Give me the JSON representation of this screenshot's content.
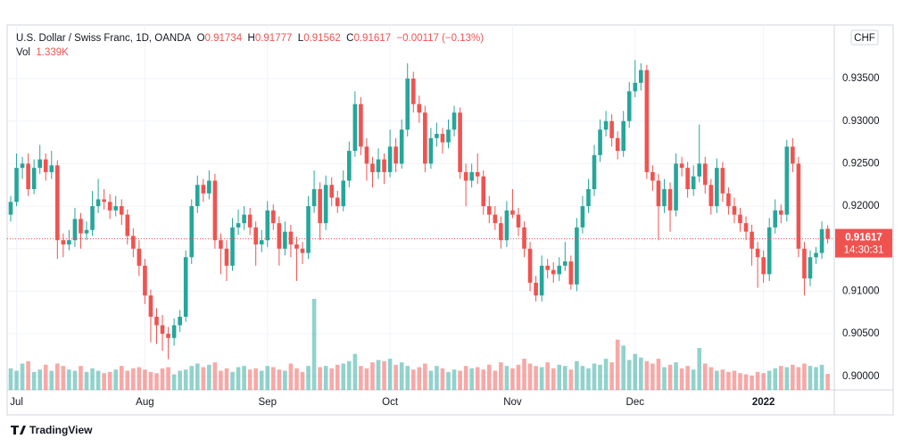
{
  "chart_data": {
    "type": "candlestick",
    "header": {
      "symbol": "U.S. Dollar / Swiss Franc, 1D, OANDA",
      "o_label": "O",
      "h_label": "H",
      "l_label": "L",
      "c_label": "C",
      "change": "−0.00117 (−0.13%)",
      "vol_label": "Vol",
      "vol_value": "1.339K",
      "currency": "CHF",
      "countdown": "14:30:31",
      "brand": "TradingView"
    },
    "up_color": "#26a69a",
    "down_color": "#ef5350",
    "ylim": [
      0.8984,
      0.9413
    ],
    "yticks": [
      {
        "value": 0.9,
        "label": "0.90000"
      },
      {
        "value": 0.905,
        "label": "0.90500"
      },
      {
        "value": 0.91,
        "label": "0.91000"
      },
      {
        "value": 0.915,
        "label": "0.91500"
      },
      {
        "value": 0.92,
        "label": "0.92000"
      },
      {
        "value": 0.925,
        "label": "0.92500"
      },
      {
        "value": 0.93,
        "label": "0.93000"
      },
      {
        "value": 0.935,
        "label": "0.93500"
      }
    ],
    "grid": true,
    "categories": [
      null,
      "Jul",
      null,
      null,
      null,
      null,
      null,
      null,
      null,
      null,
      null,
      null,
      null,
      null,
      null,
      null,
      null,
      null,
      null,
      null,
      null,
      null,
      null,
      "Aug",
      null,
      null,
      null,
      null,
      null,
      null,
      null,
      null,
      null,
      null,
      null,
      null,
      null,
      null,
      null,
      null,
      null,
      null,
      null,
      null,
      "Sep",
      null,
      null,
      null,
      null,
      null,
      null,
      null,
      null,
      null,
      null,
      null,
      null,
      null,
      null,
      null,
      null,
      null,
      null,
      null,
      null,
      "Oct",
      null,
      null,
      null,
      null,
      null,
      null,
      null,
      null,
      null,
      null,
      null,
      null,
      null,
      null,
      null,
      null,
      null,
      null,
      null,
      null,
      "Nov",
      null,
      null,
      null,
      null,
      null,
      null,
      null,
      null,
      null,
      null,
      null,
      null,
      null,
      null,
      null,
      null,
      null,
      null,
      null,
      null,
      "Dec",
      null,
      null,
      null,
      null,
      null,
      null,
      null,
      null,
      null,
      null,
      null,
      null,
      null,
      null,
      null,
      null,
      null,
      null,
      null,
      null,
      null,
      "2022",
      null,
      null,
      null,
      null,
      null,
      null,
      null,
      null,
      null,
      null,
      null
    ],
    "candles": [
      [
        0.919,
        0.9212,
        0.9182,
        0.9205
      ],
      [
        0.9205,
        0.9262,
        0.92,
        0.9245
      ],
      [
        0.9245,
        0.9258,
        0.9232,
        0.925
      ],
      [
        0.925,
        0.9262,
        0.9212,
        0.922
      ],
      [
        0.922,
        0.9255,
        0.9214,
        0.9245
      ],
      [
        0.9245,
        0.9272,
        0.9238,
        0.9255
      ],
      [
        0.9255,
        0.9262,
        0.923,
        0.924
      ],
      [
        0.924,
        0.9265,
        0.9232,
        0.9248
      ],
      [
        0.9248,
        0.9254,
        0.9138,
        0.916
      ],
      [
        0.916,
        0.9168,
        0.914,
        0.9155
      ],
      [
        0.9155,
        0.9172,
        0.9148,
        0.916
      ],
      [
        0.916,
        0.9198,
        0.9152,
        0.9185
      ],
      [
        0.9185,
        0.9192,
        0.915,
        0.9168
      ],
      [
        0.9168,
        0.9182,
        0.916,
        0.9172
      ],
      [
        0.9172,
        0.9218,
        0.9165,
        0.92
      ],
      [
        0.92,
        0.9232,
        0.9192,
        0.9208
      ],
      [
        0.9208,
        0.922,
        0.9196,
        0.9205
      ],
      [
        0.9205,
        0.9214,
        0.9185,
        0.9195
      ],
      [
        0.9195,
        0.9212,
        0.9188,
        0.92
      ],
      [
        0.92,
        0.9208,
        0.9178,
        0.919
      ],
      [
        0.919,
        0.9196,
        0.9155,
        0.9165
      ],
      [
        0.9165,
        0.9174,
        0.914,
        0.915
      ],
      [
        0.915,
        0.916,
        0.9118,
        0.913
      ],
      [
        0.913,
        0.9138,
        0.9085,
        0.9095
      ],
      [
        0.9095,
        0.9102,
        0.904,
        0.907
      ],
      [
        0.907,
        0.908,
        0.9038,
        0.906
      ],
      [
        0.906,
        0.9072,
        0.903,
        0.905
      ],
      [
        0.905,
        0.9058,
        0.902,
        0.9045
      ],
      [
        0.9045,
        0.9068,
        0.9036,
        0.906
      ],
      [
        0.906,
        0.9078,
        0.9052,
        0.907
      ],
      [
        0.907,
        0.9148,
        0.9064,
        0.914
      ],
      [
        0.914,
        0.9208,
        0.9132,
        0.92
      ],
      [
        0.92,
        0.9236,
        0.9192,
        0.9225
      ],
      [
        0.9225,
        0.9232,
        0.9205,
        0.9215
      ],
      [
        0.9215,
        0.9242,
        0.9208,
        0.923
      ],
      [
        0.923,
        0.9238,
        0.915,
        0.916
      ],
      [
        0.916,
        0.9168,
        0.912,
        0.915
      ],
      [
        0.915,
        0.916,
        0.9112,
        0.913
      ],
      [
        0.913,
        0.9186,
        0.9124,
        0.9175
      ],
      [
        0.9175,
        0.9196,
        0.9166,
        0.918
      ],
      [
        0.918,
        0.92,
        0.9172,
        0.919
      ],
      [
        0.919,
        0.9198,
        0.9166,
        0.9175
      ],
      [
        0.9175,
        0.9182,
        0.913,
        0.9155
      ],
      [
        0.9155,
        0.9172,
        0.9146,
        0.916
      ],
      [
        0.916,
        0.9206,
        0.9152,
        0.9195
      ],
      [
        0.9195,
        0.9202,
        0.9172,
        0.918
      ],
      [
        0.918,
        0.9188,
        0.913,
        0.915
      ],
      [
        0.915,
        0.9182,
        0.9142,
        0.917
      ],
      [
        0.917,
        0.9178,
        0.914,
        0.9155
      ],
      [
        0.9155,
        0.9164,
        0.9112,
        0.915
      ],
      [
        0.915,
        0.9158,
        0.9132,
        0.9145
      ],
      [
        0.9145,
        0.9212,
        0.9138,
        0.92
      ],
      [
        0.92,
        0.9242,
        0.9192,
        0.922
      ],
      [
        0.922,
        0.9228,
        0.916,
        0.918
      ],
      [
        0.918,
        0.9236,
        0.9172,
        0.9225
      ],
      [
        0.9225,
        0.9234,
        0.92,
        0.921
      ],
      [
        0.921,
        0.9218,
        0.9192,
        0.92
      ],
      [
        0.92,
        0.9242,
        0.9194,
        0.923
      ],
      [
        0.923,
        0.9276,
        0.9222,
        0.9265
      ],
      [
        0.9265,
        0.9335,
        0.9258,
        0.932
      ],
      [
        0.932,
        0.9328,
        0.926,
        0.927
      ],
      [
        0.927,
        0.928,
        0.923,
        0.925
      ],
      [
        0.925,
        0.9258,
        0.9222,
        0.924
      ],
      [
        0.924,
        0.9268,
        0.9232,
        0.9255
      ],
      [
        0.9255,
        0.9262,
        0.9226,
        0.924
      ],
      [
        0.924,
        0.929,
        0.9234,
        0.927
      ],
      [
        0.927,
        0.928,
        0.924,
        0.925
      ],
      [
        0.925,
        0.9302,
        0.9244,
        0.929
      ],
      [
        0.929,
        0.9368,
        0.9282,
        0.935
      ],
      [
        0.935,
        0.9358,
        0.931,
        0.932
      ],
      [
        0.932,
        0.933,
        0.9298,
        0.931
      ],
      [
        0.931,
        0.9318,
        0.924,
        0.925
      ],
      [
        0.925,
        0.9292,
        0.9244,
        0.928
      ],
      [
        0.928,
        0.9298,
        0.927,
        0.9285
      ],
      [
        0.9285,
        0.9292,
        0.9262,
        0.9275
      ],
      [
        0.9275,
        0.9302,
        0.9268,
        0.929
      ],
      [
        0.929,
        0.9318,
        0.9282,
        0.931
      ],
      [
        0.931,
        0.9316,
        0.9232,
        0.924
      ],
      [
        0.924,
        0.925,
        0.92,
        0.923
      ],
      [
        0.923,
        0.925,
        0.9222,
        0.924
      ],
      [
        0.924,
        0.9262,
        0.9226,
        0.9235
      ],
      [
        0.9235,
        0.9242,
        0.919,
        0.92
      ],
      [
        0.92,
        0.9212,
        0.918,
        0.919
      ],
      [
        0.919,
        0.92,
        0.9172,
        0.918
      ],
      [
        0.918,
        0.9188,
        0.915,
        0.916
      ],
      [
        0.916,
        0.9206,
        0.9152,
        0.9195
      ],
      [
        0.9195,
        0.922,
        0.9186,
        0.919
      ],
      [
        0.919,
        0.9198,
        0.9165,
        0.9175
      ],
      [
        0.9175,
        0.9182,
        0.914,
        0.915
      ],
      [
        0.915,
        0.9158,
        0.91,
        0.911
      ],
      [
        0.911,
        0.9118,
        0.9088,
        0.9095
      ],
      [
        0.9095,
        0.9142,
        0.9088,
        0.913
      ],
      [
        0.913,
        0.9138,
        0.9115,
        0.9125
      ],
      [
        0.9125,
        0.9134,
        0.911,
        0.912
      ],
      [
        0.912,
        0.914,
        0.9112,
        0.913
      ],
      [
        0.913,
        0.9158,
        0.9124,
        0.9135
      ],
      [
        0.9135,
        0.9142,
        0.9102,
        0.9108
      ],
      [
        0.9108,
        0.9186,
        0.91,
        0.9175
      ],
      [
        0.9175,
        0.9212,
        0.9168,
        0.92
      ],
      [
        0.92,
        0.9232,
        0.9192,
        0.922
      ],
      [
        0.922,
        0.9272,
        0.9212,
        0.926
      ],
      [
        0.926,
        0.9302,
        0.9252,
        0.929
      ],
      [
        0.929,
        0.9312,
        0.9282,
        0.93
      ],
      [
        0.93,
        0.9308,
        0.927,
        0.928
      ],
      [
        0.928,
        0.9288,
        0.9255,
        0.9265
      ],
      [
        0.9265,
        0.9312,
        0.9258,
        0.93
      ],
      [
        0.93,
        0.9346,
        0.9292,
        0.9335
      ],
      [
        0.9335,
        0.9372,
        0.9328,
        0.9345
      ],
      [
        0.9345,
        0.9368,
        0.9336,
        0.936
      ],
      [
        0.936,
        0.9366,
        0.9232,
        0.924
      ],
      [
        0.924,
        0.9248,
        0.9218,
        0.923
      ],
      [
        0.923,
        0.9238,
        0.916,
        0.92
      ],
      [
        0.92,
        0.9232,
        0.9192,
        0.922
      ],
      [
        0.922,
        0.9228,
        0.917,
        0.9195
      ],
      [
        0.9195,
        0.9262,
        0.9188,
        0.925
      ],
      [
        0.925,
        0.9258,
        0.9235,
        0.9245
      ],
      [
        0.9245,
        0.9252,
        0.921,
        0.922
      ],
      [
        0.922,
        0.9248,
        0.9212,
        0.9235
      ],
      [
        0.9235,
        0.9296,
        0.9228,
        0.925
      ],
      [
        0.925,
        0.9258,
        0.9215,
        0.9225
      ],
      [
        0.9225,
        0.9232,
        0.919,
        0.92
      ],
      [
        0.92,
        0.9256,
        0.9192,
        0.9245
      ],
      [
        0.9245,
        0.9252,
        0.9205,
        0.9215
      ],
      [
        0.9215,
        0.9222,
        0.919,
        0.92
      ],
      [
        0.92,
        0.921,
        0.918,
        0.919
      ],
      [
        0.919,
        0.9198,
        0.917,
        0.918
      ],
      [
        0.918,
        0.9188,
        0.916,
        0.917
      ],
      [
        0.917,
        0.9178,
        0.913,
        0.915
      ],
      [
        0.915,
        0.9158,
        0.9104,
        0.914
      ],
      [
        0.914,
        0.9148,
        0.911,
        0.912
      ],
      [
        0.912,
        0.9186,
        0.9112,
        0.9175
      ],
      [
        0.9175,
        0.9208,
        0.9168,
        0.9195
      ],
      [
        0.9195,
        0.9202,
        0.918,
        0.919
      ],
      [
        0.919,
        0.9278,
        0.9182,
        0.927
      ],
      [
        0.927,
        0.928,
        0.924,
        0.925
      ],
      [
        0.925,
        0.9258,
        0.914,
        0.915
      ],
      [
        0.915,
        0.9158,
        0.9095,
        0.9115
      ],
      [
        0.9115,
        0.9148,
        0.9106,
        0.914
      ],
      [
        0.914,
        0.9152,
        0.9132,
        0.9145
      ],
      [
        0.9145,
        0.9182,
        0.9138,
        0.9173
      ],
      [
        0.91734,
        0.91777,
        0.91562,
        0.91617
      ]
    ],
    "volume": [
      1.8,
      1.6,
      2.2,
      2.4,
      1.5,
      1.7,
      2.1,
      1.6,
      2.2,
      2.0,
      1.7,
      1.6,
      2.0,
      1.5,
      1.8,
      1.6,
      1.4,
      1.5,
      1.7,
      2.0,
      1.6,
      1.8,
      1.9,
      1.7,
      1.5,
      1.4,
      1.8,
      1.9,
      1.3,
      1.6,
      1.7,
      2.0,
      2.2,
      1.9,
      2.1,
      2.3,
      1.6,
      1.8,
      1.5,
      1.9,
      2.0,
      1.7,
      1.8,
      1.6,
      2.0,
      1.9,
      1.7,
      1.6,
      2.2,
      1.8,
      1.5,
      2.0,
      7.6,
      1.9,
      2.0,
      1.8,
      2.1,
      2.2,
      2.4,
      3.0,
      2.0,
      1.8,
      2.3,
      2.5,
      2.4,
      2.6,
      2.1,
      2.3,
      2.0,
      1.7,
      1.9,
      2.2,
      1.6,
      2.0,
      1.8,
      1.5,
      1.7,
      1.6,
      2.0,
      1.8,
      1.9,
      1.7,
      2.1,
      1.6,
      2.3,
      2.0,
      1.8,
      2.1,
      2.6,
      2.2,
      2.0,
      1.9,
      2.3,
      1.8,
      2.1,
      2.0,
      1.7,
      2.4,
      2.0,
      1.8,
      2.2,
      2.1,
      2.6,
      2.3,
      4.2,
      3.7,
      2.5,
      3.0,
      2.7,
      2.4,
      2.2,
      2.6,
      1.9,
      2.1,
      2.3,
      1.8,
      2.0,
      1.7,
      3.5,
      2.2,
      1.9,
      1.6,
      1.7,
      1.5,
      1.6,
      1.4,
      1.3,
      1.2,
      1.5,
      1.4,
      1.6,
      1.8,
      2.0,
      1.9,
      2.1,
      1.9,
      2.2,
      2.0,
      1.9,
      2.1,
      1.339
    ]
  }
}
